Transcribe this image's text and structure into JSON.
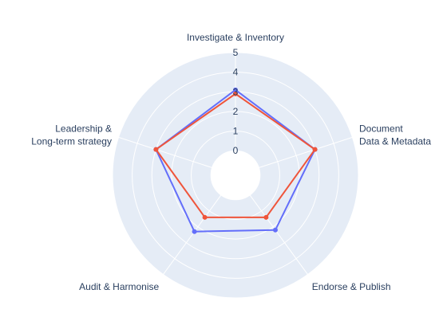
{
  "chart_data": {
    "type": "radar",
    "axes": [
      "Investigate & Inventory",
      "Document\nData & Metadata",
      "Endorse & Publish",
      "Audit & Harmonise",
      "Leadership &\nLong-term strategy"
    ],
    "radial_range": [
      0,
      5
    ],
    "radial_ticks": [
      "0",
      "1",
      "2",
      "3",
      "4",
      "5"
    ],
    "radial_hole": 0.2,
    "grid": true,
    "legend": false,
    "series": [
      {
        "color": "#636efa",
        "values": [
          3.1,
          3.0,
          2.2,
          2.3,
          3.0
        ]
      },
      {
        "color": "#ef553b",
        "values": [
          2.9,
          3.0,
          1.4,
          1.4,
          3.0
        ]
      }
    ],
    "colors": {
      "polar_bg": "#e5ecf6",
      "grid": "#ffffff",
      "text": "#2a3f5f"
    }
  }
}
